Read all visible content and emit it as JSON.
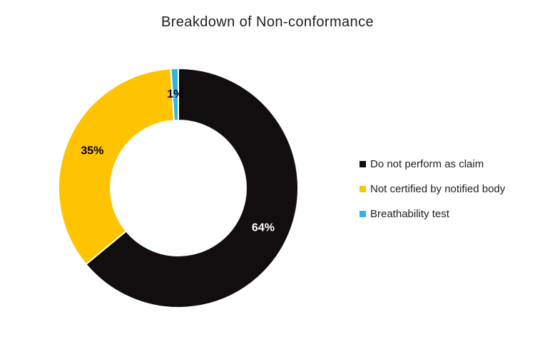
{
  "chart_data": {
    "type": "pie",
    "subtype": "doughnut",
    "title": "Breakdown of Non-conformance",
    "categories": [
      "Do not perform as claim",
      "Not certified by notified body",
      "Breathability test"
    ],
    "values": [
      64,
      35,
      1
    ],
    "data_labels": [
      "64%",
      "35%",
      "1%"
    ],
    "slice_colors": [
      "#120d0f",
      "#ffc300",
      "#31b3e4"
    ],
    "data_label_colors": [
      "#ffffff",
      "#000000",
      "#000000"
    ],
    "slice_border_color": "#ffffff",
    "hole_ratio": 0.565,
    "start_angle_deg": 0,
    "direction": "clockwise",
    "legend_position": "right",
    "title_color": "#1e1e1e",
    "legend_text_color": "#1e1e1e",
    "background_color": "#ffffff"
  }
}
